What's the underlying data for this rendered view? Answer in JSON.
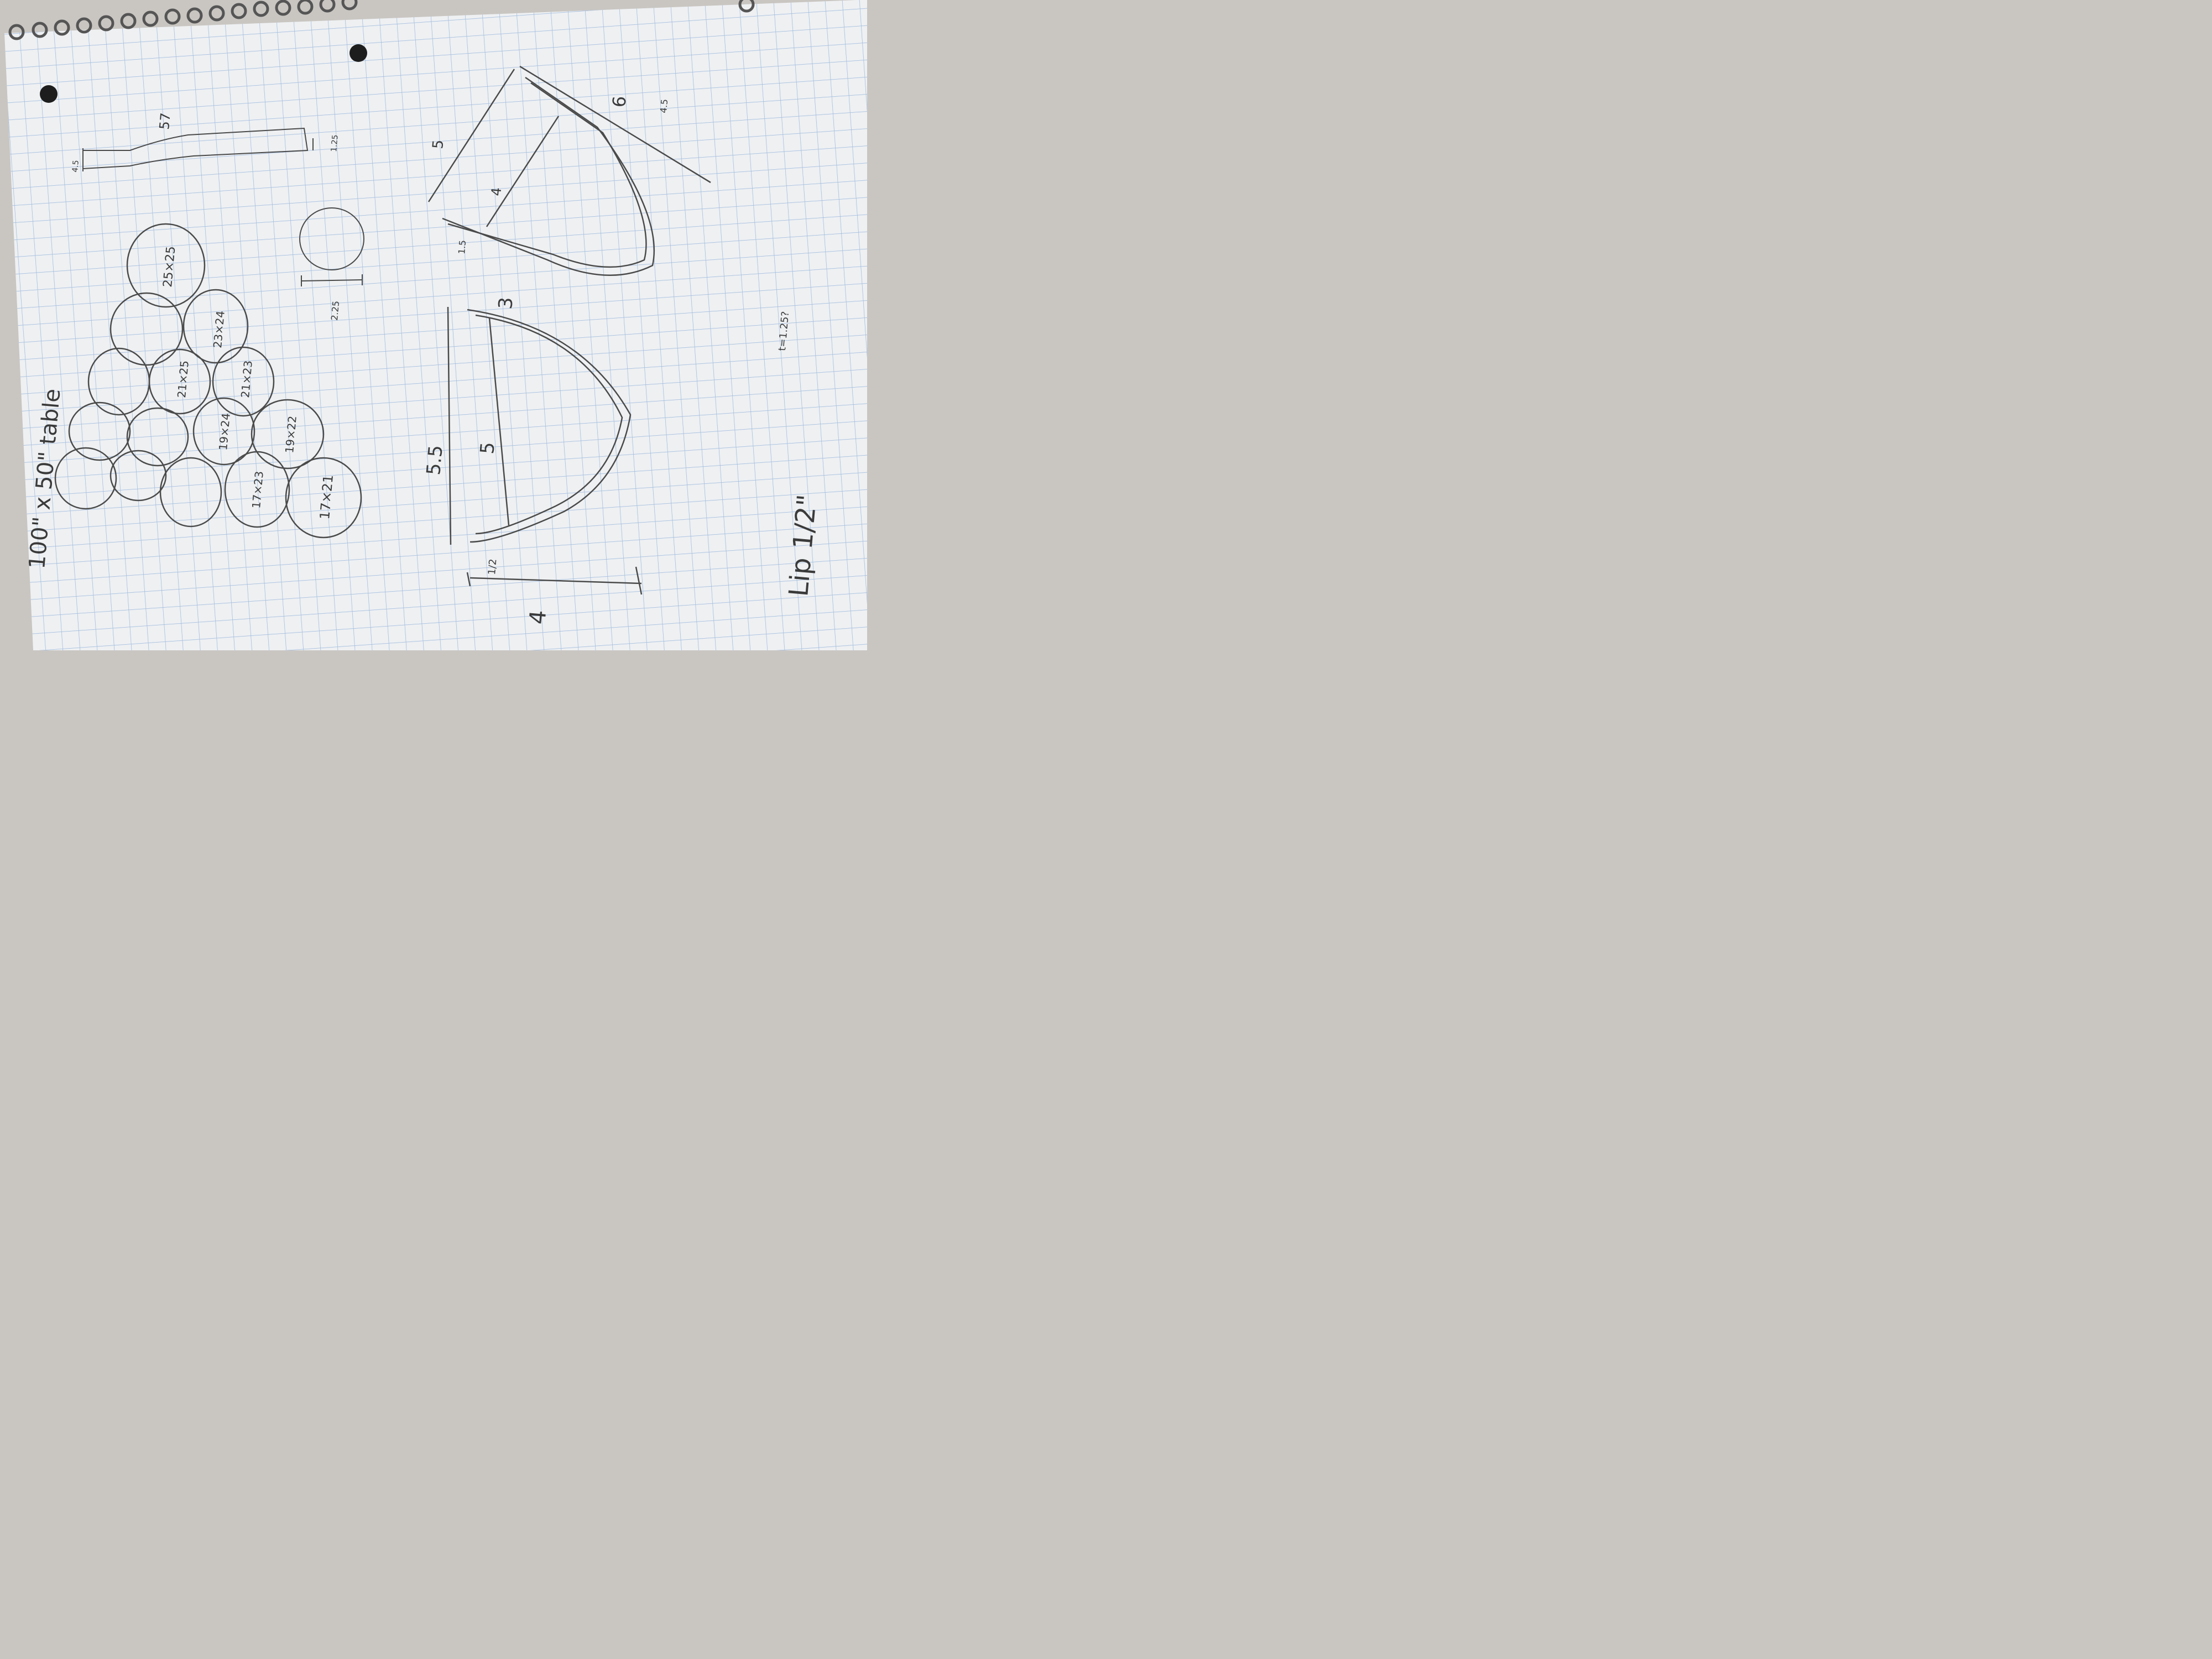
{
  "title": "100\" x 50\" table",
  "rings": [
    {
      "label": "25×25"
    },
    {
      "label": "23×24"
    },
    {
      "label": "21×25"
    },
    {
      "label": "21×23"
    },
    {
      "label": "19×24"
    },
    {
      "label": "19×22"
    },
    {
      "label": "17×23"
    },
    {
      "label": "17×21"
    },
    {
      "label": ""
    },
    {
      "label": ""
    },
    {
      "label": ""
    },
    {
      "label": ""
    },
    {
      "label": ""
    },
    {
      "label": ""
    }
  ],
  "bar_sketch": {
    "dim_left": "4.5",
    "dim_right": "1.25",
    "dim_top": "57"
  },
  "small_circle": {
    "dim": "2.25"
  },
  "upper_curve": {
    "dim_top": "5",
    "dim_mid": "4",
    "dim_right": "4.5",
    "dim_far": "6",
    "dim_bottom": "1.5"
  },
  "lower_curve": {
    "dim_outer": "5.5",
    "dim_inner": "5",
    "dim_top": "3",
    "dim_left": "4",
    "dim_bottom": "1/2"
  },
  "lip_note": "Lip 1/2\"",
  "faint_note": "t=1.25?",
  "colors": {
    "paper": "#eef0f2",
    "grid": "#9bb7dc",
    "ink": "#3a3a3a"
  }
}
